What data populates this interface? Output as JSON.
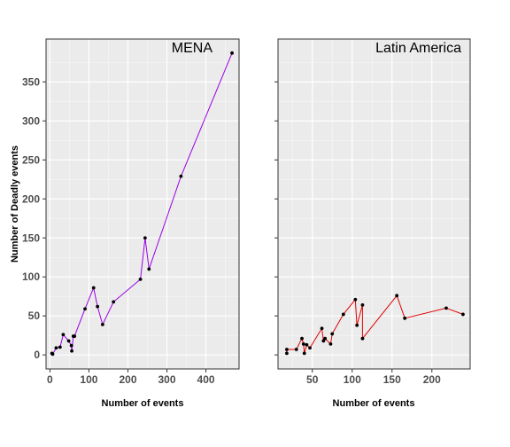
{
  "chart_data": [
    {
      "type": "line",
      "title": "MENA",
      "xlabel": "Number of events",
      "ylabel": "Number of Deadly events",
      "xlim": [
        -10,
        485
      ],
      "ylim": [
        -18,
        405
      ],
      "xticks": [
        0,
        100,
        200,
        300,
        400
      ],
      "yticks": [
        0,
        50,
        100,
        150,
        200,
        250,
        300,
        350
      ],
      "grid": true,
      "line_color": "#9A00E6",
      "point_color": "#000000",
      "x": [
        5,
        7,
        16,
        26,
        34,
        48,
        55,
        56,
        60,
        63,
        90,
        112,
        122,
        135,
        163,
        232,
        244,
        254,
        336,
        467
      ],
      "y": [
        2,
        1,
        9,
        10,
        26,
        18,
        12,
        5,
        24,
        24,
        59,
        86,
        62,
        39,
        68,
        97,
        150,
        110,
        229,
        387
      ]
    },
    {
      "type": "line",
      "title": "Latin America",
      "xlabel": "Number of events",
      "ylabel": "",
      "xlim": [
        7,
        248
      ],
      "ylim": [
        -18,
        405
      ],
      "xticks": [
        50,
        100,
        150,
        200
      ],
      "yticks": [
        0,
        50,
        100,
        150,
        200,
        250,
        300,
        350
      ],
      "grid": true,
      "line_color": "#E00000",
      "point_color": "#000000",
      "x": [
        18,
        18,
        30,
        37,
        39,
        40,
        43,
        47,
        62,
        64,
        66,
        73,
        75,
        89,
        104,
        106,
        113,
        113,
        156,
        166,
        218,
        239
      ],
      "y": [
        2,
        7,
        7,
        21,
        14,
        2,
        13,
        9,
        34,
        18,
        21,
        14,
        27,
        52,
        71,
        38,
        64,
        21,
        76,
        47,
        60,
        52
      ]
    }
  ]
}
